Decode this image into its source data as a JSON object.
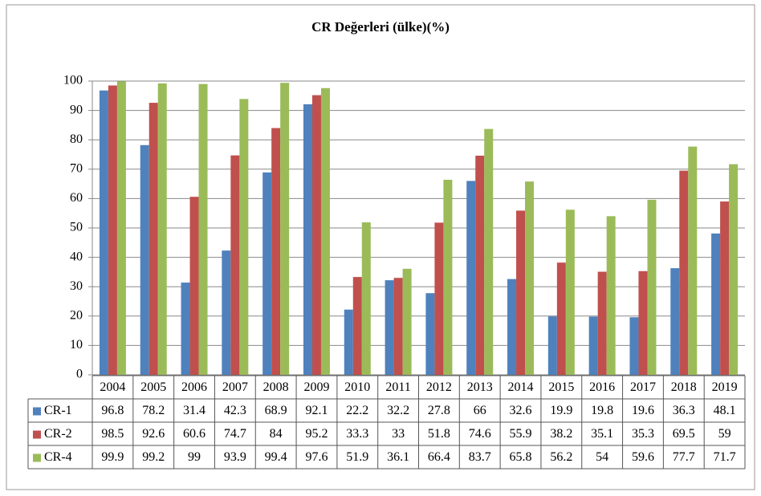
{
  "chart_data": {
    "type": "bar",
    "title": "CR Değerleri (ülke)(%)",
    "categories": [
      "2004",
      "2005",
      "2006",
      "2007",
      "2008",
      "2009",
      "2010",
      "2011",
      "2012",
      "2013",
      "2014",
      "2015",
      "2016",
      "2017",
      "2018",
      "2019"
    ],
    "series": [
      {
        "name": "CR-1",
        "color": "#4f81bd",
        "values": [
          96.8,
          78.2,
          31.4,
          42.3,
          68.9,
          92.1,
          22.2,
          32.2,
          27.8,
          66,
          32.6,
          19.9,
          19.8,
          19.6,
          36.3,
          48.1
        ]
      },
      {
        "name": "CR-2",
        "color": "#c0504d",
        "values": [
          98.5,
          92.6,
          60.6,
          74.7,
          84,
          95.2,
          33.3,
          33,
          51.8,
          74.6,
          55.9,
          38.2,
          35.1,
          35.3,
          69.5,
          59
        ]
      },
      {
        "name": "CR-4",
        "color": "#9bbb59",
        "values": [
          99.9,
          99.2,
          99,
          93.9,
          99.4,
          97.6,
          51.9,
          36.1,
          66.4,
          83.7,
          65.8,
          56.2,
          54,
          59.6,
          77.7,
          71.7
        ]
      }
    ],
    "ylim": [
      0,
      100
    ],
    "yticks": [
      0,
      10,
      20,
      30,
      40,
      50,
      60,
      70,
      80,
      90,
      100
    ],
    "grid": true,
    "data_table": true
  }
}
